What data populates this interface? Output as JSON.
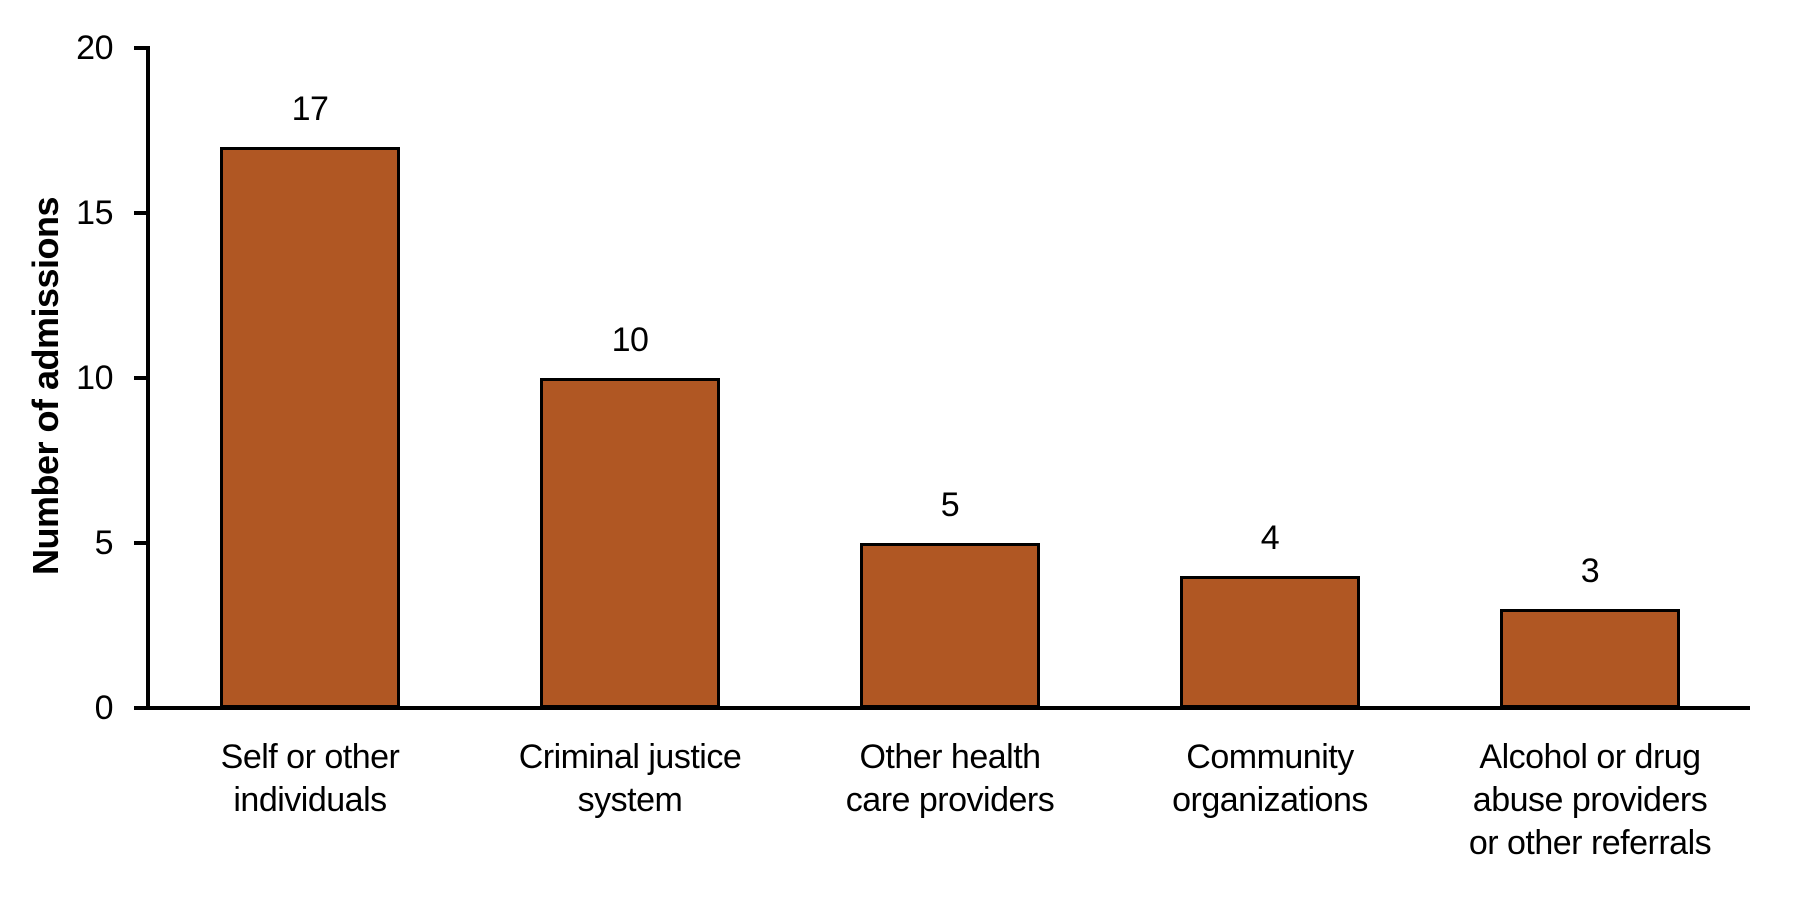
{
  "chart_data": {
    "type": "bar",
    "title": "",
    "xlabel": "",
    "ylabel": "Number of admissions",
    "ylim": [
      0,
      20
    ],
    "yticks": [
      0,
      5,
      10,
      15,
      20
    ],
    "grid": false,
    "legend": null,
    "bar_color": "#b05723",
    "bar_border_color": "#000000",
    "text_color": "#000000",
    "background_color": "#ffffff",
    "categories": [
      "Self or other\nindividuals",
      "Criminal justice\nsystem",
      "Other health\ncare providers",
      "Community\norganizations",
      "Alcohol or drug\nabuse providers\nor other referrals"
    ],
    "values": [
      17,
      10,
      5,
      4,
      3
    ],
    "value_labels": [
      "17",
      "10",
      "5",
      "4",
      "3"
    ]
  }
}
